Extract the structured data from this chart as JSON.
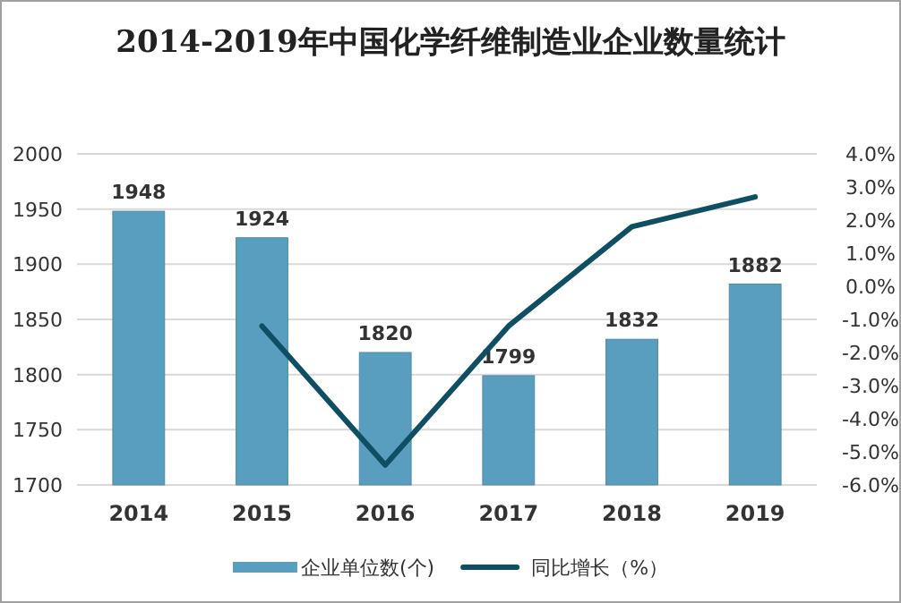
{
  "chart_data": {
    "type": "bar",
    "title": "2014-2019年中国化学纤维制造业企业数量统计",
    "categories": [
      "2014",
      "2015",
      "2016",
      "2017",
      "2018",
      "2019"
    ],
    "series": [
      {
        "name": "企业单位数(个)",
        "color": "#5a9ebf",
        "values": [
          1948,
          1924,
          1820,
          1799,
          1832,
          1882
        ],
        "value_labels": [
          "1948",
          "1924",
          "1820",
          "1799",
          "1832",
          "1882"
        ]
      },
      {
        "name": "同比增长（%）",
        "type": "line",
        "axis": "y2",
        "color": "#0e4f64",
        "values": [
          null,
          -1.2,
          -5.4,
          -1.2,
          1.8,
          2.7
        ]
      }
    ],
    "ylim": [
      1700,
      2000
    ],
    "yticks": [
      1700,
      1750,
      1800,
      1850,
      1900,
      1950,
      2000
    ],
    "y2lim": [
      -6,
      4
    ],
    "y2ticks": [
      {
        "value": -6,
        "label": "-6.0%"
      },
      {
        "value": -5,
        "label": "-5.0%"
      },
      {
        "value": -4,
        "label": "-4.0%"
      },
      {
        "value": -3,
        "label": "-3.0%"
      },
      {
        "value": -2,
        "label": "-2.0%"
      },
      {
        "value": -1,
        "label": "-1.0%"
      },
      {
        "value": 0,
        "label": "0.0%"
      },
      {
        "value": 1,
        "label": "1.0%"
      },
      {
        "value": 2,
        "label": "2.0%"
      },
      {
        "value": 3,
        "label": "3.0%"
      },
      {
        "value": 4,
        "label": "4.0%"
      }
    ],
    "grid": "y",
    "legend": "bottom"
  }
}
